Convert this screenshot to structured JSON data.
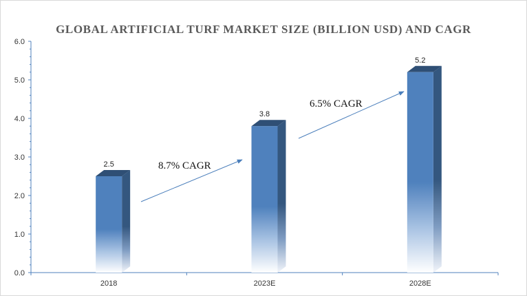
{
  "chart_data": {
    "type": "bar",
    "title": "GLOBAL ARTIFICIAL TURF MARKET SIZE (BILLION USD) AND CAGR",
    "categories": [
      "2018",
      "2023E",
      "2028E"
    ],
    "values": [
      2.5,
      3.8,
      5.2
    ],
    "data_labels": [
      "2.5",
      "3.8",
      "5.2"
    ],
    "ylim": [
      0,
      6
    ],
    "yticks": [
      "0.0",
      "1.0",
      "2.0",
      "3.0",
      "4.0",
      "5.0",
      "6.0"
    ],
    "xlabel": "",
    "ylabel": "",
    "grid": false,
    "bar_style": "3d-column-gradient",
    "colors": {
      "bar_top": "#4f81bd",
      "bar_side": "#3a5f8c",
      "bar_cap": "#2f4f75",
      "axis": "#4f81bd",
      "arrow": "#4a7ebb"
    },
    "annotations": [
      {
        "text": "8.7% CAGR",
        "from_category": "2018",
        "to_category": "2023E"
      },
      {
        "text": "6.5% CAGR",
        "from_category": "2023E",
        "to_category": "2028E"
      }
    ]
  }
}
